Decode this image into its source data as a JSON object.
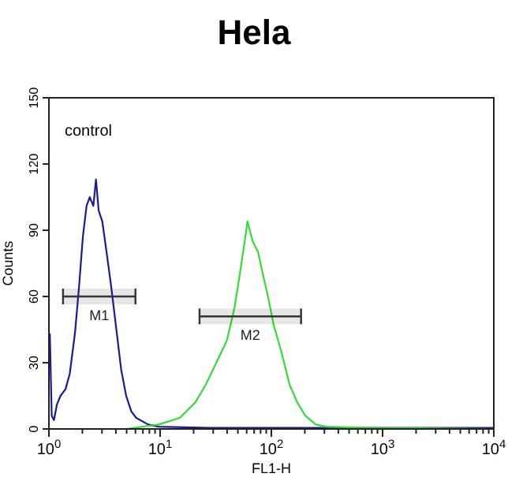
{
  "chart_data": {
    "type": "line",
    "title": "Hela",
    "xlabel": "FL1-H",
    "ylabel": "Counts",
    "log": "x",
    "grid": false,
    "marker": "none",
    "line_style": "solid",
    "annotations": [
      "control"
    ],
    "xlim": [
      1,
      10000
    ],
    "ylim": [
      0,
      150
    ],
    "xticks": [
      {
        "value": 1,
        "label": "10$^{0}$"
      },
      {
        "value": 2,
        "label": null
      },
      {
        "value": 3,
        "label": null
      },
      {
        "value": 4,
        "label": null
      },
      {
        "value": 5,
        "label": null
      },
      {
        "value": 6,
        "label": null
      },
      {
        "value": 7,
        "label": null
      },
      {
        "value": 8,
        "label": null
      },
      {
        "value": 9,
        "label": null
      },
      {
        "value": 10,
        "label": "10$^{1}$"
      },
      {
        "value": 20,
        "label": null
      },
      {
        "value": 30,
        "label": null
      },
      {
        "value": 40,
        "label": null
      },
      {
        "value": 50,
        "label": null
      },
      {
        "value": 60,
        "label": null
      },
      {
        "value": 70,
        "label": null
      },
      {
        "value": 80,
        "label": null
      },
      {
        "value": 90,
        "label": null
      },
      {
        "value": 100,
        "label": "10$^{2}$"
      },
      {
        "value": 200,
        "label": null
      },
      {
        "value": 300,
        "label": null
      },
      {
        "value": 400,
        "label": null
      },
      {
        "value": 500,
        "label": null
      },
      {
        "value": 600,
        "label": null
      },
      {
        "value": 700,
        "label": null
      },
      {
        "value": 800,
        "label": null
      },
      {
        "value": 900,
        "label": null
      },
      {
        "value": 1000,
        "label": "10$^{3}$"
      },
      {
        "value": 2000,
        "label": null
      },
      {
        "value": 3000,
        "label": null
      },
      {
        "value": 4000,
        "label": null
      },
      {
        "value": 5000,
        "label": null
      },
      {
        "value": 6000,
        "label": null
      },
      {
        "value": 7000,
        "label": null
      },
      {
        "value": 8000,
        "label": null
      },
      {
        "value": 9000,
        "label": null
      },
      {
        "value": 10000,
        "label": "10$^{4}$"
      }
    ],
    "yticks": [
      0,
      30,
      60,
      90,
      120,
      150
    ],
    "bands": [
      {
        "axis": "x",
        "from": 1.34,
        "to": 6,
        "label": "M1",
        "color": "#333333"
      },
      {
        "axis": "x",
        "from": 22.6,
        "to": 185,
        "label": "M2",
        "color": "#333333"
      }
    ],
    "series": [
      {
        "color": "#1a1a9c",
        "x": [
          1,
          1.02,
          1.06,
          1.11,
          1.18,
          1.27,
          1.41,
          1.54,
          1.72,
          1.87,
          2.02,
          2.18,
          2.33,
          2.51,
          2.65,
          2.8,
          3.02,
          3.26,
          3.62,
          4.02,
          4.46,
          4.95,
          5.5,
          6.1,
          7.8,
          9.7,
          28.7,
          251,
          10000
        ],
        "values": [
          30,
          43,
          6,
          4,
          11,
          15,
          18,
          25,
          44,
          65,
          87,
          101,
          105,
          101,
          113,
          99,
          94,
          82,
          65,
          46,
          27,
          15,
          8,
          5,
          2,
          1,
          0.5,
          0.5,
          0.5
        ]
      },
      {
        "color": "#33dd33",
        "x": [
          4.95,
          9.7,
          15,
          20.7,
          25.7,
          32,
          39.8,
          46.7,
          52,
          58,
          61,
          68,
          76,
          84,
          95,
          105,
          123,
          146,
          171,
          202,
          251,
          312,
          738,
          10000
        ],
        "values": [
          0,
          2,
          5,
          12,
          20,
          30,
          40,
          55,
          70,
          86,
          94,
          85,
          80,
          70,
          58,
          47,
          35,
          20,
          12,
          6,
          2,
          1,
          0.5,
          0
        ]
      }
    ]
  }
}
